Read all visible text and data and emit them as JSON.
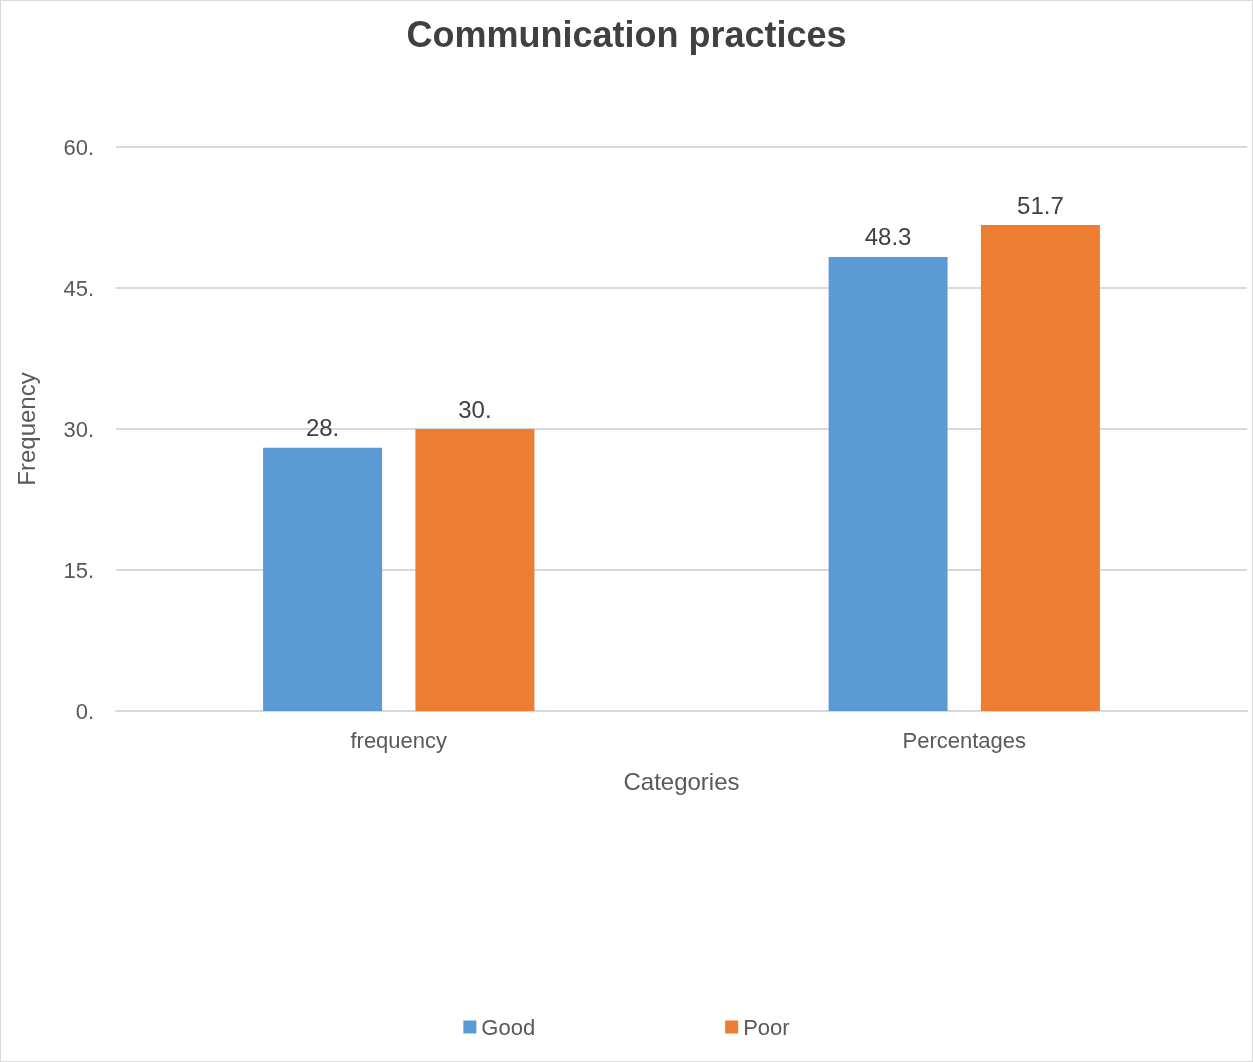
{
  "chart_data": {
    "type": "bar",
    "title": "Communication practices",
    "xlabel": "Categories",
    "ylabel": "Frequency",
    "categories": [
      "frequency",
      "Percentages"
    ],
    "series": [
      {
        "name": "Good",
        "color": "#5b9bd5",
        "values": [
          28,
          48.3
        ],
        "value_labels": [
          "28.",
          "48.3"
        ]
      },
      {
        "name": "Poor",
        "color": "#ed7d31",
        "values": [
          30,
          51.7
        ],
        "value_labels": [
          "30.",
          "51.7"
        ]
      }
    ],
    "ylim": [
      0,
      60
    ],
    "yticks": [
      {
        "value": 0,
        "label": "0."
      },
      {
        "value": 15,
        "label": "15."
      },
      {
        "value": 30,
        "label": "30."
      },
      {
        "value": 45,
        "label": "45."
      },
      {
        "value": 60,
        "label": "60."
      }
    ],
    "grid": "y",
    "legend": "bottom"
  }
}
